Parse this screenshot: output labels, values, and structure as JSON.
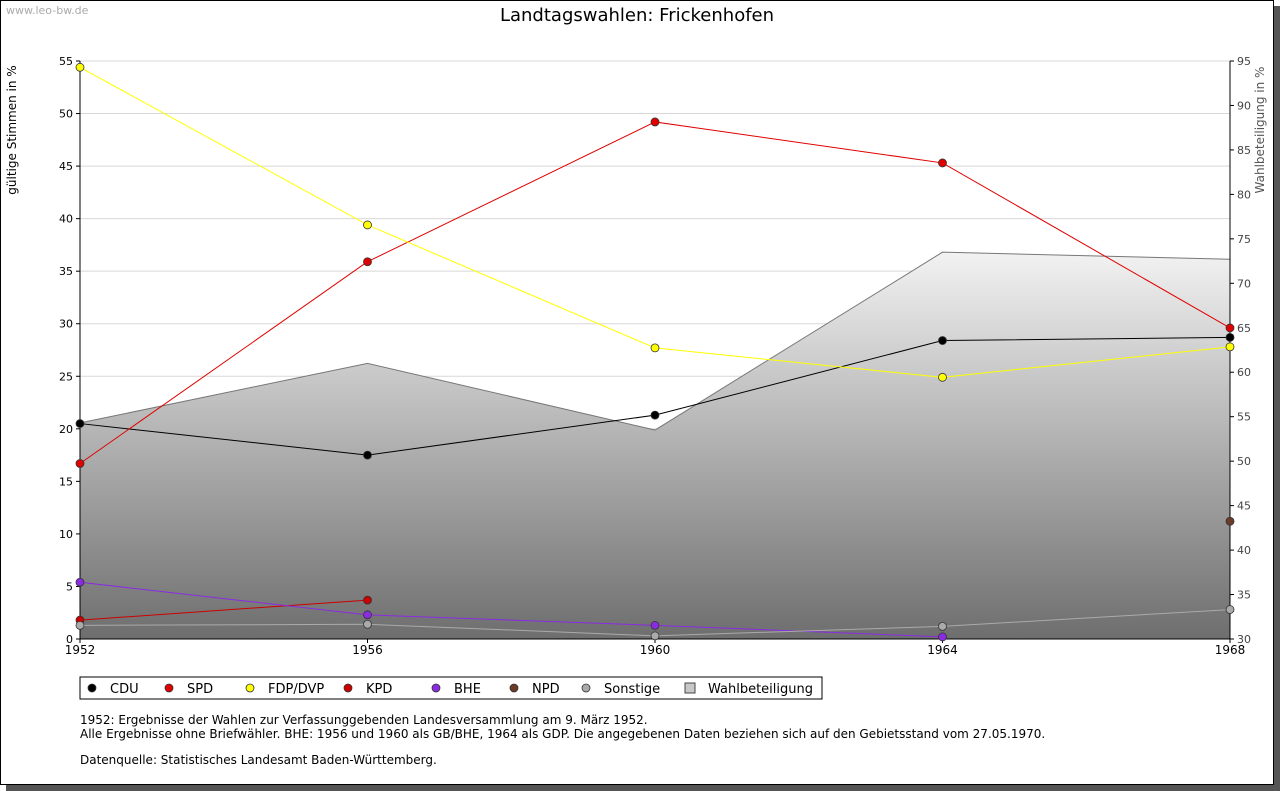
{
  "watermark": "www.leo-bw.de",
  "chart_data": {
    "type": "line",
    "title": "Landtagswahlen: Frickenhofen",
    "ylabel": "gültige Stimmen in %",
    "y2label": "Wahlbeteiligung in %",
    "ylim": [
      0,
      55
    ],
    "y2lim": [
      30,
      95
    ],
    "yticks": [
      "0",
      "5",
      "10",
      "15",
      "20",
      "25",
      "30",
      "35",
      "40",
      "45",
      "50",
      "55"
    ],
    "y2ticks": [
      "30",
      "35",
      "40",
      "45",
      "50",
      "55",
      "60",
      "65",
      "70",
      "75",
      "80",
      "85",
      "90",
      "95"
    ],
    "x": [
      "1952",
      "1956",
      "1960",
      "1964",
      "1968"
    ],
    "series": [
      {
        "name": "CDU",
        "color": "#000000",
        "values": [
          20.5,
          17.5,
          21.3,
          28.4,
          28.7
        ]
      },
      {
        "name": "SPD",
        "color": "#e00000",
        "values": [
          16.7,
          35.9,
          49.2,
          45.3,
          29.6
        ]
      },
      {
        "name": "FDP/DVP",
        "color": "#ffff00",
        "values": [
          54.4,
          39.4,
          27.7,
          24.9,
          27.8
        ]
      },
      {
        "name": "KPD",
        "color": "#cc0000",
        "values": [
          1.8,
          3.7,
          null,
          null,
          null
        ]
      },
      {
        "name": "BHE",
        "color": "#8a2be2",
        "values": [
          5.4,
          2.3,
          1.3,
          0.2,
          null
        ]
      },
      {
        "name": "NPD",
        "color": "#6b3a2a",
        "values": [
          null,
          null,
          null,
          null,
          11.2
        ]
      },
      {
        "name": "Sonstige",
        "color": "#aaaaaa",
        "values": [
          1.3,
          1.4,
          0.3,
          1.2,
          2.8
        ]
      }
    ],
    "turnout": {
      "name": "Wahlbeteiligung",
      "values": [
        54.3,
        61.0,
        53.5,
        73.5,
        72.7
      ]
    },
    "legend": [
      "CDU",
      "SPD",
      "FDP/DVP",
      "KPD",
      "BHE",
      "NPD",
      "Sonstige",
      "Wahlbeteiligung"
    ]
  },
  "notes": {
    "line1": "1952: Ergebnisse der Wahlen zur Verfassunggebenden Landesversammlung am 9. März 1952.",
    "line2": "Alle Ergebnisse ohne Briefwähler. BHE: 1956 und 1960 als GB/BHE, 1964 als GDP. Die angegebenen Daten beziehen sich auf den Gebietsstand vom 27.05.1970.",
    "source": "Datenquelle: Statistisches Landesamt Baden-Württemberg."
  }
}
